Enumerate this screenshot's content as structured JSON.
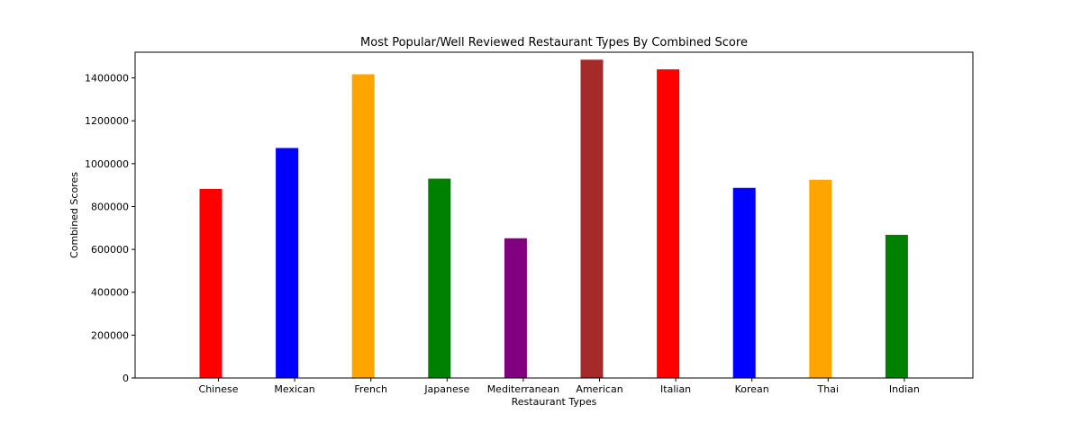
{
  "chart_data": {
    "type": "bar",
    "title": "Most Popular/Well Reviewed Restaurant Types By Combined Score",
    "xlabel": "Restaurant Types",
    "ylabel": "Combined Scores",
    "categories": [
      "Chinese",
      "Mexican",
      "French",
      "Japanese",
      "Mediterranean",
      "American",
      "Italian",
      "Korean",
      "Thai",
      "Indian"
    ],
    "values": [
      882000,
      1073000,
      1417000,
      930000,
      652000,
      1485000,
      1440000,
      887000,
      925000,
      668000
    ],
    "colors": [
      "#ff0000",
      "#0000ff",
      "#ffa500",
      "#008000",
      "#800080",
      "#a52a2a",
      "#ff0000",
      "#0000ff",
      "#ffa500",
      "#008000"
    ],
    "ylim": [
      0,
      1520000
    ],
    "yticks": [
      0,
      200000,
      400000,
      600000,
      800000,
      1000000,
      1200000,
      1400000
    ],
    "grid": false,
    "legend": "none"
  }
}
